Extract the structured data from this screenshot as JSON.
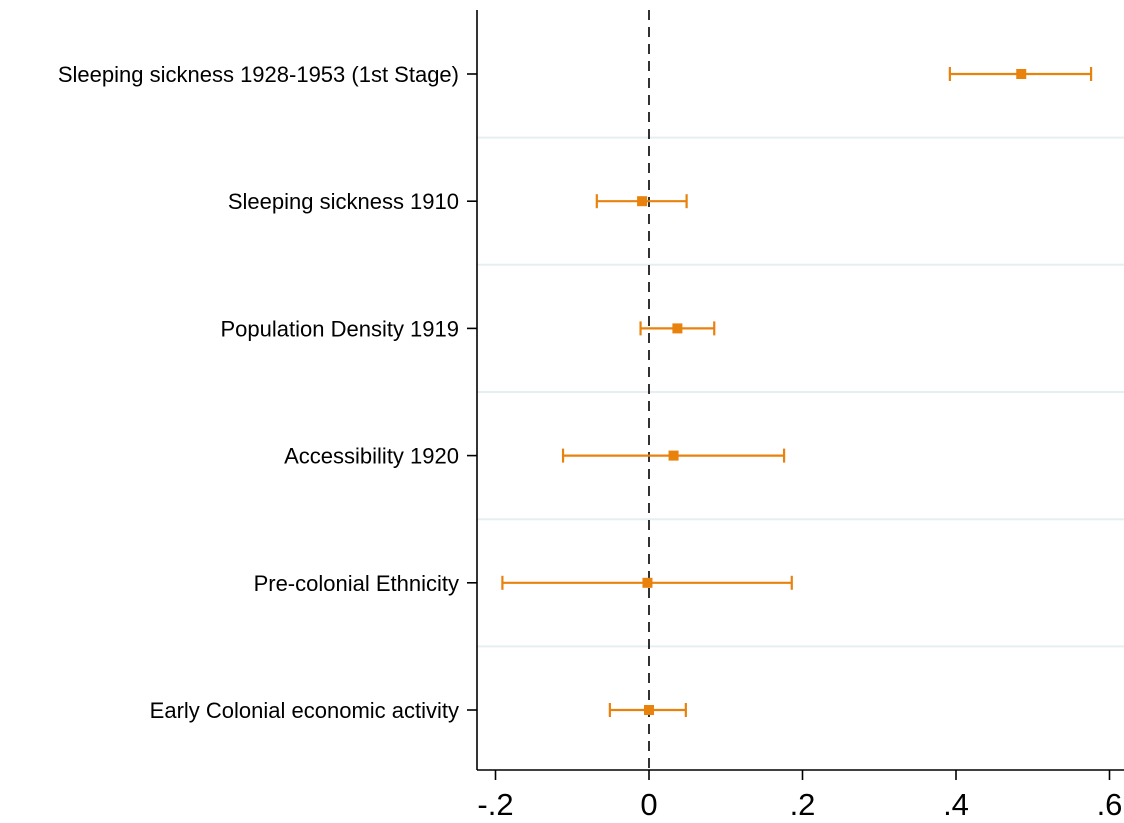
{
  "chart_data": {
    "type": "coefficient_plot",
    "title": "",
    "xlabel": "",
    "ylabel": "",
    "xlim": [
      -0.225,
      0.625
    ],
    "xticks": [
      {
        "value": -0.2,
        "label": "-.2"
      },
      {
        "value": 0,
        "label": "0"
      },
      {
        "value": 0.2,
        "label": ".2"
      },
      {
        "value": 0.4,
        "label": ".4"
      },
      {
        "value": 0.6,
        "label": ".6"
      }
    ],
    "reference_line": {
      "x": 0,
      "style": "dashed"
    },
    "grid": "horizontal separators between rows",
    "marker_color": "#E8820C",
    "series": [
      {
        "points": [
          {
            "label": "Sleeping sickness 1928-1953 (1st Stage)",
            "estimate": 0.485,
            "ci_low": 0.392,
            "ci_high": 0.576
          },
          {
            "label": "Sleeping sickness 1910",
            "estimate": -0.009,
            "ci_low": -0.068,
            "ci_high": 0.049
          },
          {
            "label": "Population Density 1919",
            "estimate": 0.037,
            "ci_low": -0.011,
            "ci_high": 0.085
          },
          {
            "label": "Accessibility 1920",
            "estimate": 0.032,
            "ci_low": -0.112,
            "ci_high": 0.176
          },
          {
            "label": "Pre-colonial Ethnicity",
            "estimate": -0.002,
            "ci_low": -0.191,
            "ci_high": 0.186
          },
          {
            "label": "Early Colonial economic activity",
            "estimate": 0.0,
            "ci_low": -0.051,
            "ci_high": 0.048
          }
        ]
      }
    ]
  }
}
